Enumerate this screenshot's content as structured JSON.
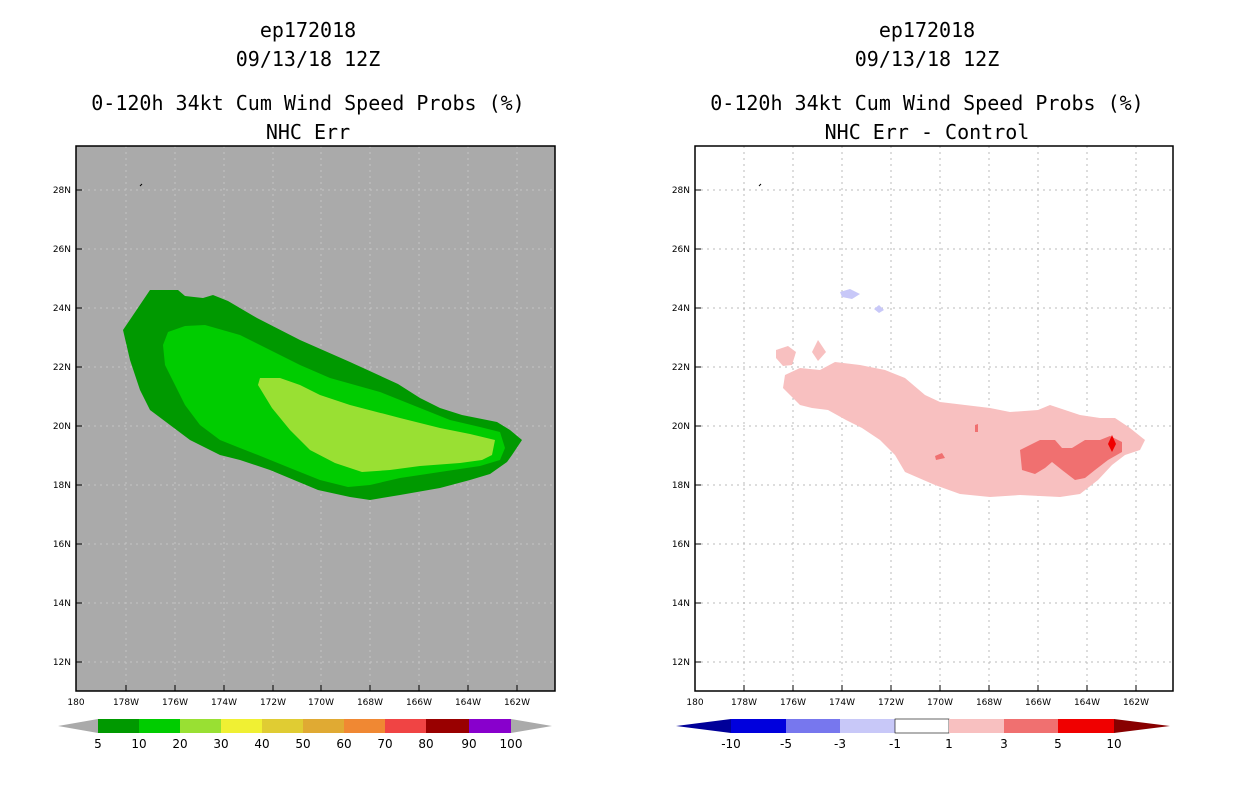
{
  "left": {
    "title1": "ep172018",
    "title2": "09/13/18 12Z",
    "title3": "0-120h 34kt Cum Wind Speed Probs (%)",
    "title4": "NHC Err",
    "y_ticks": [
      "28N",
      "26N",
      "24N",
      "22N",
      "20N",
      "18N",
      "16N",
      "14N",
      "12N"
    ],
    "x_ticks": [
      "180",
      "178W",
      "176W",
      "174W",
      "172W",
      "170W",
      "168W",
      "166W",
      "164W",
      "162W"
    ],
    "legend": {
      "labels": [
        "5",
        "10",
        "20",
        "30",
        "40",
        "50",
        "60",
        "70",
        "80",
        "90",
        "100"
      ],
      "colors": [
        "#009900",
        "#00cc00",
        "#99e033",
        "#f0f033",
        "#e0cc33",
        "#e0aa33",
        "#f08833",
        "#f04444",
        "#990000",
        "#8800cc"
      ],
      "under_color": "#aaaaaa",
      "over_color": "#aaaaaa"
    }
  },
  "right": {
    "title1": "ep172018",
    "title2": "09/13/18 12Z",
    "title3": "0-120h 34kt Cum Wind Speed Probs (%)",
    "title4": "NHC Err - Control",
    "y_ticks": [
      "28N",
      "26N",
      "24N",
      "22N",
      "20N",
      "18N",
      "16N",
      "14N",
      "12N"
    ],
    "x_ticks": [
      "180",
      "178W",
      "176W",
      "174W",
      "172W",
      "170W",
      "168W",
      "166W",
      "164W",
      "162W"
    ],
    "legend": {
      "labels": [
        "-10",
        "-5",
        "-3",
        "-1",
        "1",
        "3",
        "5",
        "10"
      ],
      "colors": [
        "#0000dd",
        "#7777ee",
        "#c8c8f8",
        "#ffffff",
        "#f8c0c0",
        "#f07070",
        "#f00000"
      ],
      "under_color": "#000099",
      "over_color": "#880000"
    }
  },
  "colors": {
    "land_bg": "#aaaaaa",
    "prob_5": "#009900",
    "prob_10": "#00cc00",
    "prob_20": "#99e033",
    "diff_pos_1": "#f8c0c0",
    "diff_pos_3": "#f07070",
    "diff_pos_5": "#f00000",
    "diff_neg_1": "#c8c8f8"
  }
}
